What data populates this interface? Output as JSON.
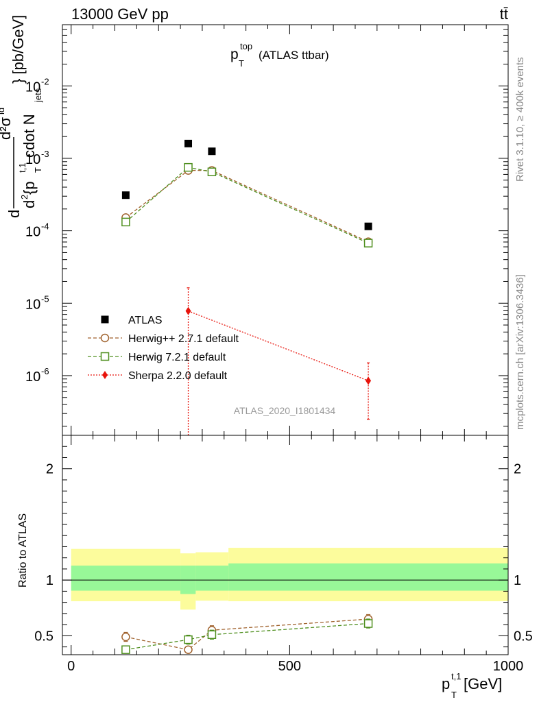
{
  "header": {
    "left": "13000 GeV pp",
    "right": "tt̄"
  },
  "side_text": {
    "rivet": "Rivet 3.1.10, ≥ 400k events",
    "mcplots": "mcplots.cern.ch [arXiv:1306.3436]"
  },
  "chart_data": [
    {
      "type": "scatter",
      "title": "p_T^top (ATLAS ttbar)",
      "title_main": "p",
      "title_sup": "top",
      "title_sub": "T",
      "title_rest": "(ATLAS ttbar)",
      "analysis_id": "ATLAS_2020_I1801434",
      "ylabel": "d²σ^{id} / d² {p_T^{t,1} cdot N_jets} [pb/GeV]",
      "ylabel_parts": {
        "num": "d²σ",
        "num_sup": "id",
        "den_a": "d",
        "den_b": "2",
        "den_c": " {p",
        "den_d": "T",
        "den_e": "t,1",
        "den_f": " cdot N",
        "den_g": "jets",
        "close": "} [pb/GeV]"
      },
      "yscale": "log",
      "ylim": [
        1.5e-07,
        0.07
      ],
      "xlim": [
        -20,
        1000
      ],
      "y_ticks": [
        {
          "v": 1e-06,
          "base": "10",
          "exp": "-6"
        },
        {
          "v": 1e-05,
          "base": "10",
          "exp": "-5"
        },
        {
          "v": 0.0001,
          "base": "10",
          "exp": "-4"
        },
        {
          "v": 0.001,
          "base": "10",
          "exp": "-3"
        },
        {
          "v": 0.01,
          "base": "10",
          "exp": "-2"
        }
      ],
      "legend_position": "lower-left",
      "series": [
        {
          "name": "ATLAS",
          "marker": "square-filled",
          "color": "#000000",
          "x": [
            125,
            268,
            322,
            680
          ],
          "y": [
            0.00031,
            0.0016,
            0.00125,
            0.000115
          ]
        },
        {
          "name": "Herwig++ 2.7.1 default",
          "marker": "circle-open",
          "color": "#a0622d",
          "dash": "5,3",
          "x": [
            125,
            268,
            322,
            680
          ],
          "y": [
            0.000152,
            0.00068,
            0.00068,
            7.05e-05
          ]
        },
        {
          "name": "Herwig 7.2.1 default",
          "marker": "square-open",
          "color": "#4f8f1f",
          "dash": "5,3",
          "x": [
            125,
            268,
            322,
            680
          ],
          "y": [
            0.000132,
            0.00075,
            0.00065,
            6.75e-05
          ]
        },
        {
          "name": "Sherpa 2.2.0 default",
          "marker": "diamond-filled",
          "color": "#e8140c",
          "dash": "2,2",
          "x": [
            268,
            680
          ],
          "y": [
            7.8e-06,
            8.5e-07
          ],
          "err_low": [
            7.8e-06,
            6e-07
          ],
          "err_high": [
            8.5e-06,
            6.5e-07
          ]
        }
      ]
    },
    {
      "type": "scatter",
      "title": "Ratio to ATLAS",
      "ylabel": "Ratio to ATLAS",
      "xlabel": "p_T^{t,1} [GeV]",
      "xlabel_parts": {
        "main": "p",
        "sup": "t,1",
        "sub": "T",
        "rest": " [GeV]"
      },
      "ylim": [
        0.33,
        2.3
      ],
      "xlim": [
        -20,
        1000
      ],
      "x_ticks": [
        {
          "v": 0,
          "label": "0"
        },
        {
          "v": 500,
          "label": "500"
        },
        {
          "v": 1000,
          "label": "1000"
        }
      ],
      "y_ticks": [
        {
          "v": 0.5,
          "label": "0.5"
        },
        {
          "v": 1,
          "label": "1"
        },
        {
          "v": 2,
          "label": "2"
        }
      ],
      "bands": [
        {
          "x0": 0,
          "x1": 250,
          "inner": [
            0.905,
            1.13
          ],
          "outer": [
            0.81,
            1.28
          ]
        },
        {
          "x0": 250,
          "x1": 285,
          "inner": [
            0.875,
            1.13
          ],
          "outer": [
            0.735,
            1.24
          ]
        },
        {
          "x0": 285,
          "x1": 360,
          "inner": [
            0.905,
            1.13
          ],
          "outer": [
            0.815,
            1.25
          ]
        },
        {
          "x0": 360,
          "x1": 1000,
          "inner": [
            0.905,
            1.15
          ],
          "outer": [
            0.81,
            1.29
          ]
        }
      ],
      "band_colors": {
        "inner": "#98f898",
        "outer": "#fcfc9c"
      },
      "series": [
        {
          "name": "Herwig++ 2.7.1 default",
          "marker": "circle-open",
          "color": "#a0622d",
          "dash": "5,3",
          "x": [
            125,
            268,
            322,
            680
          ],
          "y": [
            0.49,
            0.375,
            0.55,
            0.65
          ],
          "err": [
            0.04,
            0.01,
            0.04,
            0.04
          ]
        },
        {
          "name": "Herwig 7.2.1 default",
          "marker": "square-open",
          "color": "#4f8f1f",
          "dash": "5,3",
          "x": [
            125,
            268,
            322,
            680
          ],
          "y": [
            0.375,
            0.465,
            0.51,
            0.61
          ],
          "err": [
            0.01,
            0.04,
            0.04,
            0.04
          ]
        }
      ]
    }
  ]
}
